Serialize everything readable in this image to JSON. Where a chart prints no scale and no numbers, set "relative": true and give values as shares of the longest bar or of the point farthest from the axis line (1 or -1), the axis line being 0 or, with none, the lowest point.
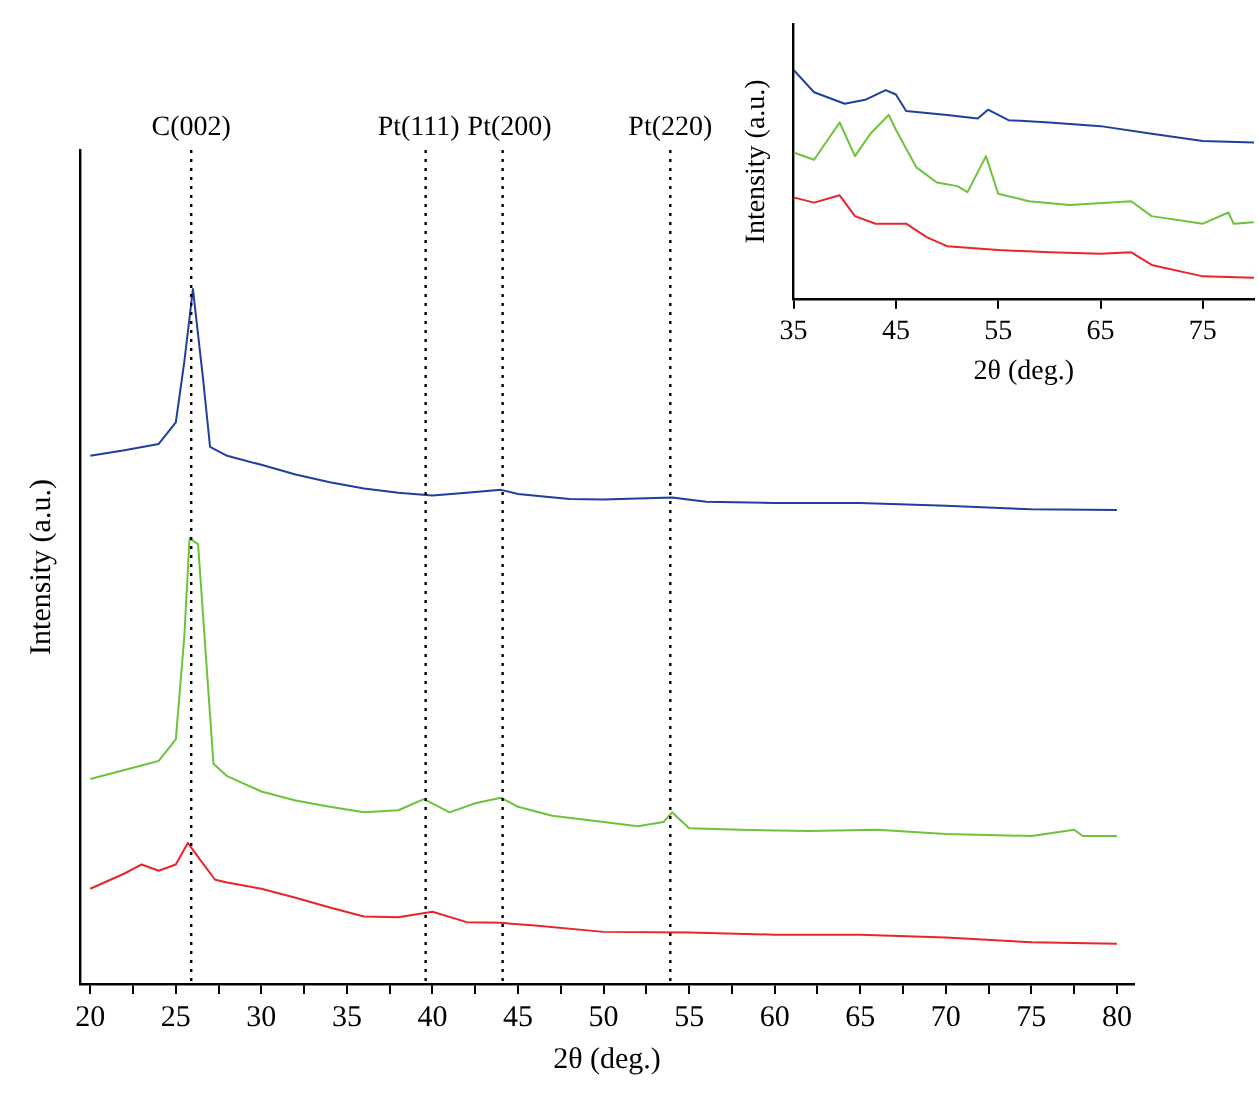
{
  "chart_data": [
    {
      "type": "line",
      "xlabel": "2θ (deg.)",
      "ylabel": "Intensity (a.u.)",
      "relative": true,
      "xlim": [
        19.4,
        81
      ],
      "xticks": [
        20,
        {
          "value": 22.5,
          "label": null
        },
        25,
        {
          "value": 27.5,
          "label": null
        },
        30,
        {
          "value": 32.5,
          "label": null
        },
        35,
        {
          "value": 37.5,
          "label": null
        },
        40,
        {
          "value": 42.5,
          "label": null
        },
        45,
        {
          "value": 47.5,
          "label": null
        },
        50,
        {
          "value": 52.5,
          "label": null
        },
        55,
        {
          "value": 57.5,
          "label": null
        },
        60,
        {
          "value": 62.5,
          "label": null
        },
        65,
        {
          "value": 67.5,
          "label": null
        },
        70,
        {
          "value": 72.5,
          "label": null
        },
        75,
        {
          "value": 77.5,
          "label": null
        },
        80
      ],
      "tick_labels": "x",
      "grid": false,
      "legend": false,
      "marker": "none",
      "line_style": "solid",
      "series": [
        {
          "color": "#1f3f9e",
          "x": [
            20,
            22,
            24,
            25,
            25.5,
            26,
            26.6,
            27,
            28,
            30,
            32,
            34,
            36,
            38,
            40,
            42,
            44,
            45,
            48,
            50,
            54,
            56,
            60,
            65,
            70,
            75,
            80
          ],
          "values": [
            0.76,
            0.768,
            0.777,
            0.808,
            0.896,
            1.0,
            0.869,
            0.773,
            0.76,
            0.747,
            0.733,
            0.722,
            0.713,
            0.707,
            0.703,
            0.707,
            0.711,
            0.705,
            0.698,
            0.697,
            0.7,
            0.694,
            0.692,
            0.692,
            0.688,
            0.683,
            0.682
          ]
        },
        {
          "color": "#6cc33a",
          "x": [
            20,
            22,
            24,
            25,
            25.5,
            25.8,
            26.3,
            26.8,
            27.2,
            28,
            30,
            32,
            34,
            36,
            38,
            39.5,
            41,
            42.5,
            44,
            45,
            47,
            50,
            52,
            53.5,
            54,
            55,
            58,
            62,
            66,
            70,
            75,
            77.5,
            78,
            80
          ],
          "values": [
            0.295,
            0.308,
            0.321,
            0.352,
            0.501,
            0.641,
            0.633,
            0.457,
            0.317,
            0.299,
            0.277,
            0.264,
            0.255,
            0.247,
            0.25,
            0.266,
            0.247,
            0.26,
            0.268,
            0.255,
            0.242,
            0.233,
            0.227,
            0.233,
            0.247,
            0.224,
            0.222,
            0.22,
            0.222,
            0.216,
            0.213,
            0.222,
            0.213,
            0.213
          ]
        },
        {
          "color": "#e8262a",
          "x": [
            20,
            22,
            23,
            24,
            25,
            25.7,
            26.5,
            27.3,
            28,
            30,
            32,
            34,
            36,
            38,
            40,
            42,
            44,
            46,
            50,
            55,
            60,
            65,
            70,
            75,
            80
          ],
          "values": [
            0.137,
            0.159,
            0.172,
            0.163,
            0.172,
            0.203,
            0.176,
            0.15,
            0.146,
            0.137,
            0.124,
            0.11,
            0.097,
            0.096,
            0.104,
            0.089,
            0.088,
            0.084,
            0.075,
            0.074,
            0.071,
            0.071,
            0.067,
            0.06,
            0.058
          ]
        }
      ],
      "ref_lines": [
        {
          "axis": "x",
          "value": 25.9,
          "label": "C(002)",
          "color": "#000000",
          "line_style": "dotted"
        },
        {
          "axis": "x",
          "value": 39.6,
          "label": "Pt(111)",
          "color": "#000000",
          "line_style": "dotted"
        },
        {
          "axis": "x",
          "value": 44.1,
          "label": "Pt(200)",
          "color": "#000000",
          "line_style": "dotted"
        },
        {
          "axis": "x",
          "value": 53.9,
          "label": "Pt(220)",
          "color": "#000000",
          "line_style": "dotted"
        }
      ]
    },
    {
      "type": "line",
      "xlabel": "2θ (deg.)",
      "ylabel": "Intensity (a.u.)",
      "relative": true,
      "xlim": [
        35,
        80
      ],
      "xticks": [
        35,
        45,
        55,
        65,
        75
      ],
      "tick_labels": "x",
      "grid": false,
      "legend": false,
      "marker": "none",
      "line_style": "solid",
      "series": [
        {
          "color": "#1f3f9e",
          "x": [
            35,
            37,
            40,
            42,
            44,
            45,
            46,
            50,
            53,
            54,
            56,
            60,
            65,
            70,
            75,
            80
          ],
          "values": [
            1.0,
            0.902,
            0.852,
            0.869,
            0.911,
            0.892,
            0.82,
            0.803,
            0.787,
            0.826,
            0.78,
            0.77,
            0.754,
            0.721,
            0.689,
            0.682
          ]
        },
        {
          "color": "#6cc33a",
          "x": [
            35,
            37,
            39.5,
            41,
            42.5,
            44.3,
            45,
            47,
            49,
            51,
            52,
            53.8,
            55,
            58,
            62,
            66,
            68,
            70,
            75,
            77.5,
            78,
            80
          ],
          "values": [
            0.639,
            0.607,
            0.77,
            0.623,
            0.721,
            0.803,
            0.738,
            0.574,
            0.508,
            0.492,
            0.466,
            0.623,
            0.459,
            0.426,
            0.41,
            0.42,
            0.426,
            0.361,
            0.328,
            0.377,
            0.328,
            0.334
          ]
        },
        {
          "color": "#e8262a",
          "x": [
            35,
            37,
            39.5,
            41,
            43,
            46,
            48,
            50,
            55,
            60,
            65,
            68,
            70,
            75,
            80
          ],
          "values": [
            0.443,
            0.42,
            0.452,
            0.361,
            0.328,
            0.328,
            0.269,
            0.23,
            0.213,
            0.203,
            0.197,
            0.203,
            0.148,
            0.098,
            0.092
          ]
        }
      ]
    }
  ]
}
